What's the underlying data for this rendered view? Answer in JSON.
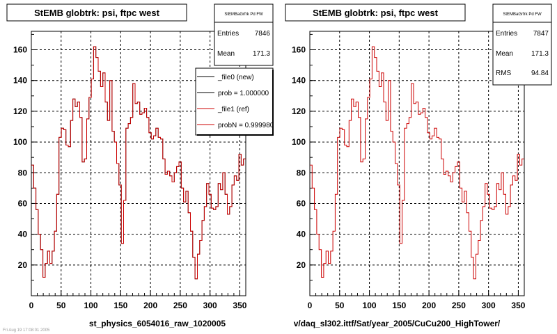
{
  "left_panel": {
    "title": "StEMB globtrk: psi, ftpc west",
    "stats": {
      "name": "StEMBaGrfrk Pd FW",
      "rows": [
        {
          "label": "Entries",
          "value": "7846"
        },
        {
          "label": "Mean",
          "value": "171.3"
        }
      ]
    },
    "legend": [
      {
        "label": "_file0 (new)",
        "color": "#000000"
      },
      {
        "label": "prob = 1.000000",
        "color": "#000000"
      },
      {
        "label": "_file1 (ref)",
        "color": "#cc0000"
      },
      {
        "label": "probN = 0.999980",
        "color": "#cc0000"
      }
    ],
    "xlabel": "st_physics_6054016_raw_1020005"
  },
  "right_panel": {
    "title": "StEMB globtrk: psi, ftpc west",
    "stats": {
      "name": "StEMBaGrfrk Pd FW",
      "rows": [
        {
          "label": "Entries",
          "value": "7847"
        },
        {
          "label": "Mean",
          "value": "171.3"
        },
        {
          "label": "RMS",
          "value": "94.84"
        }
      ]
    },
    "xlabel": "v/daq_sl302.ittf/Sat/year_2005/CuCu200_HighTower/"
  },
  "footer_note": "Fri Aug 19 17:08:01 2005",
  "chart_data": [
    {
      "type": "line",
      "title": "StEMB globtrk: psi, ftpc west",
      "xlabel": "st_physics_6054016_raw_1020005",
      "xlim": [
        0,
        360
      ],
      "ylim": [
        0,
        172
      ],
      "xticks": [
        0,
        50,
        100,
        150,
        200,
        250,
        300,
        350
      ],
      "yticks": [
        20,
        40,
        60,
        80,
        100,
        120,
        140,
        160
      ],
      "grid": true,
      "series": [
        {
          "name": "_file0 (new)",
          "color": "#000000",
          "style": "step",
          "values": [
            85,
            70,
            56,
            40,
            30,
            12,
            21,
            29,
            21,
            29,
            42,
            66,
            103,
            109,
            108,
            98,
            97,
            114,
            128,
            123,
            126,
            116,
            87,
            89,
            115,
            129,
            141,
            162,
            155,
            146,
            136,
            145,
            126,
            114,
            140,
            107,
            100,
            86,
            72,
            34,
            62,
            109,
            112,
            116,
            138,
            125,
            126,
            118,
            119,
            122,
            116,
            106,
            102,
            104,
            109,
            103,
            102,
            89,
            79,
            81,
            78,
            74,
            80,
            84,
            87,
            70,
            61,
            68,
            54,
            42,
            25,
            11,
            27,
            36,
            49,
            58,
            73,
            66,
            57,
            56,
            58,
            73,
            69,
            80,
            66,
            53,
            58,
            72,
            78,
            75,
            92,
            85,
            89
          ]
        },
        {
          "name": "_file1 (ref)",
          "color": "#cc0000",
          "style": "step",
          "values": [
            85,
            70,
            56,
            40,
            30,
            12,
            21,
            29,
            21,
            29,
            42,
            66,
            103,
            109,
            108,
            98,
            97,
            114,
            128,
            123,
            126,
            116,
            87,
            89,
            115,
            129,
            141,
            162,
            155,
            146,
            136,
            145,
            126,
            114,
            140,
            107,
            100,
            86,
            72,
            34,
            62,
            109,
            112,
            116,
            138,
            125,
            126,
            118,
            119,
            122,
            116,
            106,
            102,
            104,
            109,
            103,
            102,
            89,
            79,
            81,
            78,
            74,
            80,
            84,
            87,
            70,
            61,
            68,
            54,
            42,
            25,
            11,
            27,
            36,
            49,
            58,
            73,
            66,
            57,
            56,
            58,
            73,
            69,
            80,
            66,
            53,
            58,
            72,
            78,
            75,
            92,
            85,
            89
          ]
        }
      ]
    },
    {
      "type": "line",
      "title": "StEMB globtrk: psi, ftpc west",
      "xlabel": "v/daq_sl302.ittf/Sat/year_2005/CuCu200_HighTower/",
      "xlim": [
        0,
        360
      ],
      "ylim": [
        0,
        172
      ],
      "xticks": [
        0,
        50,
        100,
        150,
        200,
        250,
        300,
        350
      ],
      "yticks": [
        20,
        40,
        60,
        80,
        100,
        120,
        140,
        160
      ],
      "grid": true,
      "series": [
        {
          "name": "_file1 (ref)",
          "color": "#cc0000",
          "style": "step",
          "values": [
            85,
            70,
            56,
            40,
            30,
            12,
            21,
            29,
            21,
            29,
            42,
            66,
            103,
            109,
            108,
            98,
            97,
            114,
            128,
            123,
            126,
            116,
            87,
            89,
            115,
            129,
            141,
            162,
            155,
            146,
            136,
            145,
            126,
            114,
            140,
            107,
            100,
            86,
            72,
            34,
            62,
            109,
            112,
            116,
            138,
            125,
            126,
            118,
            119,
            122,
            116,
            106,
            102,
            104,
            109,
            103,
            102,
            89,
            79,
            81,
            78,
            74,
            80,
            84,
            87,
            70,
            61,
            68,
            54,
            42,
            25,
            11,
            27,
            36,
            49,
            58,
            73,
            66,
            57,
            56,
            58,
            73,
            69,
            80,
            66,
            53,
            58,
            72,
            78,
            75,
            92,
            85,
            89
          ]
        }
      ]
    }
  ]
}
